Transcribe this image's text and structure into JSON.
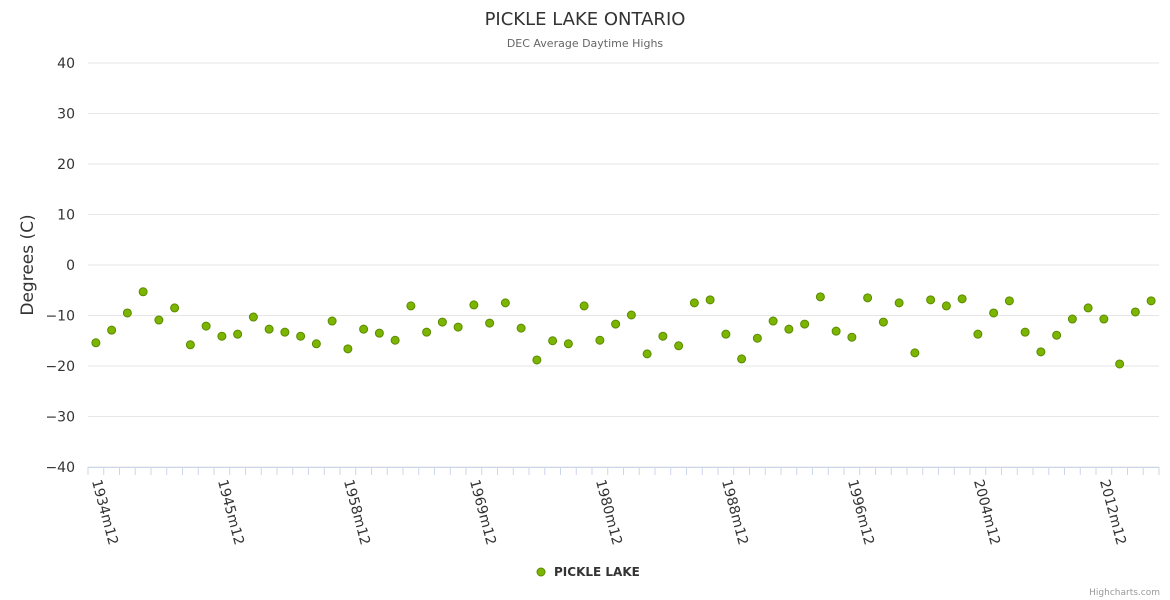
{
  "chart_data": {
    "type": "scatter",
    "title": "PICKLE LAKE ONTARIO",
    "subtitle": "DEC Average Daytime Highs",
    "xlabel": "",
    "ylabel": "Degrees (C)",
    "ylim": [
      -40,
      40
    ],
    "yticks": [
      40,
      30,
      20,
      10,
      0,
      -10,
      -20,
      -30,
      -40
    ],
    "grid": true,
    "x_tick_labels": [
      {
        "index": 0,
        "label": "1934m12"
      },
      {
        "index": 8,
        "label": "1945m12"
      },
      {
        "index": 16,
        "label": "1958m12"
      },
      {
        "index": 24,
        "label": "1969m12"
      },
      {
        "index": 32,
        "label": "1980m12"
      },
      {
        "index": 40,
        "label": "1988m12"
      },
      {
        "index": 48,
        "label": "1996m12"
      },
      {
        "index": 56,
        "label": "2004m12"
      },
      {
        "index": 64,
        "label": "2012m12"
      }
    ],
    "legend_position": "bottom-center",
    "series": [
      {
        "name": "PICKLE LAKE",
        "color": "#7cb500",
        "values": [
          -15.4,
          -12.9,
          -9.5,
          -5.3,
          -10.9,
          -8.5,
          -15.8,
          -12.1,
          -14.1,
          -13.7,
          -10.3,
          -12.7,
          -13.3,
          -14.1,
          -15.6,
          -11.1,
          -16.6,
          -12.7,
          -13.5,
          -14.9,
          -8.1,
          -13.3,
          -11.3,
          -12.3,
          -7.9,
          -11.5,
          -7.5,
          -12.5,
          -18.8,
          -15.0,
          -15.6,
          -8.1,
          -14.9,
          -11.7,
          -9.9,
          -17.6,
          -14.1,
          -16.0,
          -7.5,
          -6.9,
          -13.7,
          -18.6,
          -14.5,
          -11.1,
          -12.7,
          -11.7,
          -6.3,
          -13.1,
          -14.3,
          -6.5,
          -11.3,
          -7.5,
          -17.4,
          -6.9,
          -8.1,
          -6.7,
          -13.7,
          -9.5,
          -7.1,
          -13.3,
          -17.2,
          -13.9,
          -10.7,
          -8.5,
          -10.7,
          -19.6,
          -9.3,
          -7.1
        ]
      }
    ],
    "credits": "Highcharts.com"
  }
}
